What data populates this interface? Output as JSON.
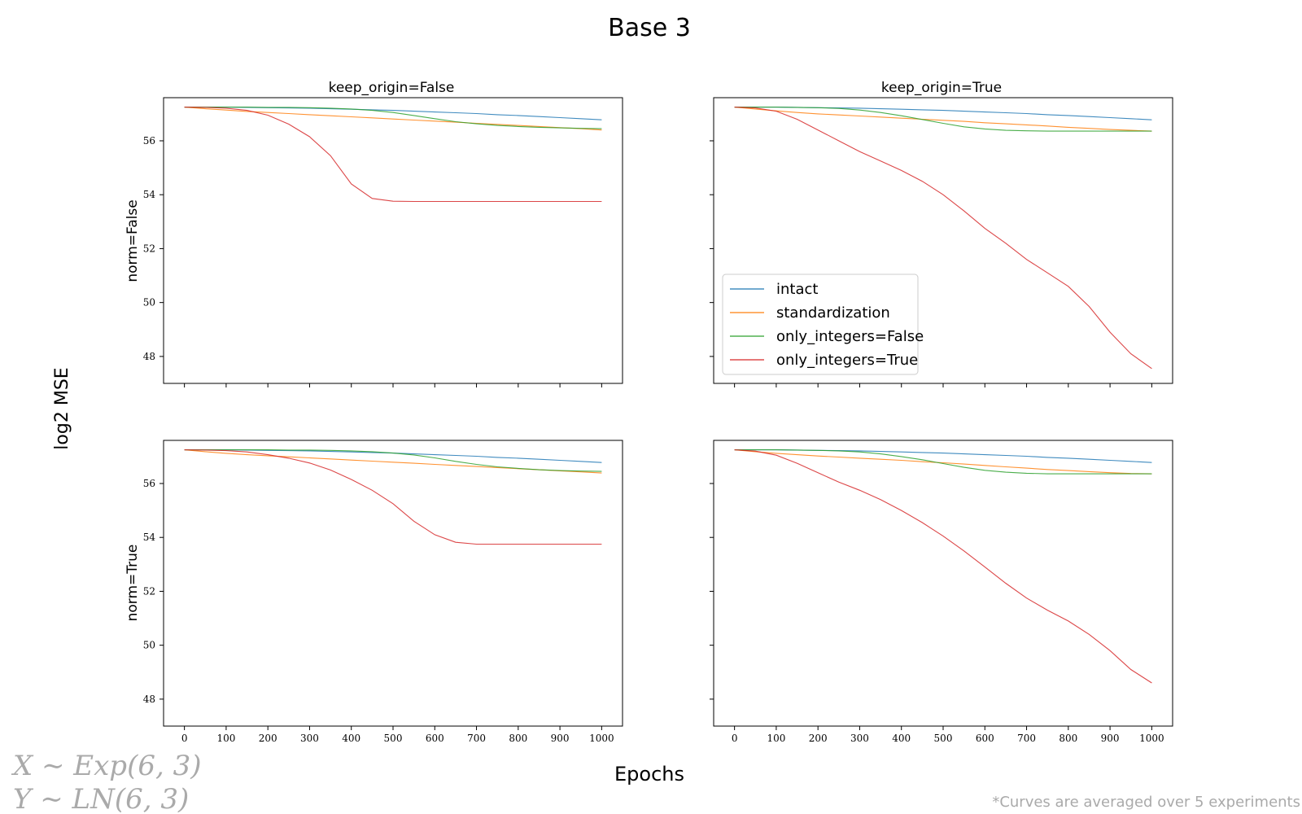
{
  "figure": {
    "title": "Base 3",
    "ylabel": "log2 MSE",
    "xlabel": "Epochs",
    "formula_x": "X ∼ Exp(6, 3)",
    "formula_y": "Y ∼ LN(6, 3)",
    "footnote": "*Curves are averaged over 5 experiments",
    "col_titles": [
      "keep_origin=False",
      "keep_origin=True"
    ],
    "row_titles": [
      "norm=False",
      "norm=True"
    ]
  },
  "colors": {
    "intact": "#1f77b4",
    "standardization": "#ff7f0e",
    "only_integers=False": "#2ca02c",
    "only_integers=True": "#d62728"
  },
  "chart_data": [
    {
      "type": "line",
      "panel": "norm=False / keep_origin=False",
      "xlim": [
        -50,
        1050
      ],
      "ylim": [
        47.0,
        57.6
      ],
      "xticks": [
        0,
        100,
        200,
        300,
        400,
        500,
        600,
        700,
        800,
        900,
        1000
      ],
      "yticks": [
        48,
        50,
        52,
        54,
        56
      ],
      "show_xticklabels": false,
      "show_yticklabels": true,
      "x": [
        0,
        50,
        100,
        150,
        200,
        250,
        300,
        350,
        400,
        450,
        500,
        550,
        600,
        650,
        700,
        750,
        800,
        850,
        900,
        950,
        1000
      ],
      "series": [
        {
          "name": "intact",
          "values": [
            57.25,
            57.25,
            57.25,
            57.24,
            57.23,
            57.22,
            57.21,
            57.19,
            57.17,
            57.15,
            57.13,
            57.1,
            57.07,
            57.04,
            57.01,
            56.97,
            56.94,
            56.9,
            56.86,
            56.82,
            56.78
          ]
        },
        {
          "name": "standardization",
          "values": [
            57.25,
            57.19,
            57.14,
            57.09,
            57.05,
            57.01,
            56.97,
            56.93,
            56.89,
            56.85,
            56.81,
            56.77,
            56.73,
            56.69,
            56.65,
            56.61,
            56.57,
            56.53,
            56.49,
            56.45,
            56.4
          ]
        },
        {
          "name": "only_integers=False",
          "values": [
            57.25,
            57.25,
            57.25,
            57.25,
            57.24,
            57.24,
            57.23,
            57.21,
            57.18,
            57.13,
            57.05,
            56.94,
            56.82,
            56.71,
            56.63,
            56.57,
            56.53,
            56.5,
            56.48,
            56.46,
            56.45
          ]
        },
        {
          "name": "only_integers=True",
          "values": [
            57.25,
            57.24,
            57.21,
            57.13,
            56.95,
            56.62,
            56.15,
            55.45,
            54.4,
            53.86,
            53.76,
            53.75,
            53.75,
            53.75,
            53.75,
            53.75,
            53.75,
            53.75,
            53.75,
            53.75,
            53.75
          ]
        }
      ]
    },
    {
      "type": "line",
      "panel": "norm=False / keep_origin=True",
      "xlim": [
        -50,
        1050
      ],
      "ylim": [
        47.0,
        57.6
      ],
      "xticks": [
        0,
        100,
        200,
        300,
        400,
        500,
        600,
        700,
        800,
        900,
        1000
      ],
      "yticks": [
        48,
        50,
        52,
        54,
        56
      ],
      "show_xticklabels": false,
      "show_yticklabels": false,
      "show_legend": true,
      "legend_loc": "lower left",
      "x": [
        0,
        50,
        100,
        150,
        200,
        250,
        300,
        350,
        400,
        450,
        500,
        550,
        600,
        650,
        700,
        750,
        800,
        850,
        900,
        950,
        1000
      ],
      "series": [
        {
          "name": "intact",
          "values": [
            57.25,
            57.25,
            57.25,
            57.24,
            57.23,
            57.22,
            57.21,
            57.19,
            57.17,
            57.15,
            57.13,
            57.1,
            57.07,
            57.04,
            57.01,
            56.97,
            56.94,
            56.9,
            56.86,
            56.82,
            56.78
          ]
        },
        {
          "name": "standardization",
          "values": [
            57.25,
            57.18,
            57.11,
            57.05,
            57.0,
            56.96,
            56.92,
            56.88,
            56.84,
            56.8,
            56.76,
            56.72,
            56.67,
            56.63,
            56.59,
            56.55,
            56.5,
            56.46,
            56.42,
            56.39,
            56.36
          ]
        },
        {
          "name": "only_integers=False",
          "values": [
            57.25,
            57.25,
            57.25,
            57.24,
            57.23,
            57.2,
            57.14,
            57.05,
            56.93,
            56.79,
            56.65,
            56.52,
            56.44,
            56.39,
            56.37,
            56.36,
            56.36,
            56.36,
            56.36,
            56.36,
            56.36
          ]
        },
        {
          "name": "only_integers=True",
          "values": [
            57.25,
            57.22,
            57.1,
            56.8,
            56.4,
            56.0,
            55.6,
            55.25,
            54.9,
            54.5,
            54.0,
            53.4,
            52.75,
            52.2,
            51.6,
            51.1,
            50.6,
            49.85,
            48.9,
            48.1,
            47.55
          ]
        }
      ]
    },
    {
      "type": "line",
      "panel": "norm=True / keep_origin=False",
      "xlim": [
        -50,
        1050
      ],
      "ylim": [
        47.0,
        57.6
      ],
      "xticks": [
        0,
        100,
        200,
        300,
        400,
        500,
        600,
        700,
        800,
        900,
        1000
      ],
      "yticks": [
        48,
        50,
        52,
        54,
        56
      ],
      "show_xticklabels": true,
      "show_yticklabels": true,
      "x": [
        0,
        50,
        100,
        150,
        200,
        250,
        300,
        350,
        400,
        450,
        500,
        550,
        600,
        650,
        700,
        750,
        800,
        850,
        900,
        950,
        1000
      ],
      "series": [
        {
          "name": "intact",
          "values": [
            57.25,
            57.25,
            57.25,
            57.24,
            57.23,
            57.22,
            57.21,
            57.19,
            57.17,
            57.15,
            57.13,
            57.1,
            57.07,
            57.04,
            57.01,
            56.97,
            56.94,
            56.9,
            56.86,
            56.82,
            56.78
          ]
        },
        {
          "name": "standardization",
          "values": [
            57.25,
            57.18,
            57.12,
            57.07,
            57.03,
            56.99,
            56.95,
            56.91,
            56.87,
            56.83,
            56.79,
            56.75,
            56.71,
            56.67,
            56.63,
            56.59,
            56.55,
            56.51,
            56.47,
            56.43,
            56.39
          ]
        },
        {
          "name": "only_integers=False",
          "values": [
            57.25,
            57.25,
            57.25,
            57.25,
            57.25,
            57.24,
            57.24,
            57.23,
            57.21,
            57.18,
            57.13,
            57.06,
            56.95,
            56.82,
            56.71,
            56.62,
            56.56,
            56.51,
            56.48,
            56.46,
            56.45
          ]
        },
        {
          "name": "only_integers=True",
          "values": [
            57.25,
            57.24,
            57.22,
            57.17,
            57.07,
            56.94,
            56.76,
            56.5,
            56.15,
            55.75,
            55.25,
            54.6,
            54.1,
            53.82,
            53.75,
            53.75,
            53.75,
            53.75,
            53.75,
            53.75,
            53.75
          ]
        }
      ]
    },
    {
      "type": "line",
      "panel": "norm=True / keep_origin=True",
      "xlim": [
        -50,
        1050
      ],
      "ylim": [
        47.0,
        57.6
      ],
      "xticks": [
        0,
        100,
        200,
        300,
        400,
        500,
        600,
        700,
        800,
        900,
        1000
      ],
      "yticks": [
        48,
        50,
        52,
        54,
        56
      ],
      "show_xticklabels": true,
      "show_yticklabels": false,
      "x": [
        0,
        50,
        100,
        150,
        200,
        250,
        300,
        350,
        400,
        450,
        500,
        550,
        600,
        650,
        700,
        750,
        800,
        850,
        900,
        950,
        1000
      ],
      "series": [
        {
          "name": "intact",
          "values": [
            57.25,
            57.25,
            57.25,
            57.24,
            57.23,
            57.22,
            57.21,
            57.19,
            57.17,
            57.15,
            57.13,
            57.1,
            57.07,
            57.04,
            57.01,
            56.97,
            56.94,
            56.9,
            56.86,
            56.82,
            56.78
          ]
        },
        {
          "name": "standardization",
          "values": [
            57.25,
            57.18,
            57.12,
            57.07,
            57.02,
            56.98,
            56.94,
            56.9,
            56.86,
            56.81,
            56.77,
            56.72,
            56.67,
            56.62,
            56.57,
            56.52,
            56.48,
            56.44,
            56.4,
            56.37,
            56.36
          ]
        },
        {
          "name": "only_integers=False",
          "values": [
            57.25,
            57.25,
            57.25,
            57.24,
            57.23,
            57.21,
            57.17,
            57.1,
            57.0,
            56.88,
            56.74,
            56.6,
            56.49,
            56.42,
            56.38,
            56.36,
            56.36,
            56.36,
            56.36,
            56.36,
            56.36
          ]
        },
        {
          "name": "only_integers=True",
          "values": [
            57.25,
            57.2,
            57.05,
            56.75,
            56.4,
            56.05,
            55.75,
            55.4,
            55.0,
            54.55,
            54.05,
            53.5,
            52.9,
            52.3,
            51.75,
            51.3,
            50.9,
            50.4,
            49.8,
            49.1,
            48.6
          ]
        }
      ]
    }
  ]
}
